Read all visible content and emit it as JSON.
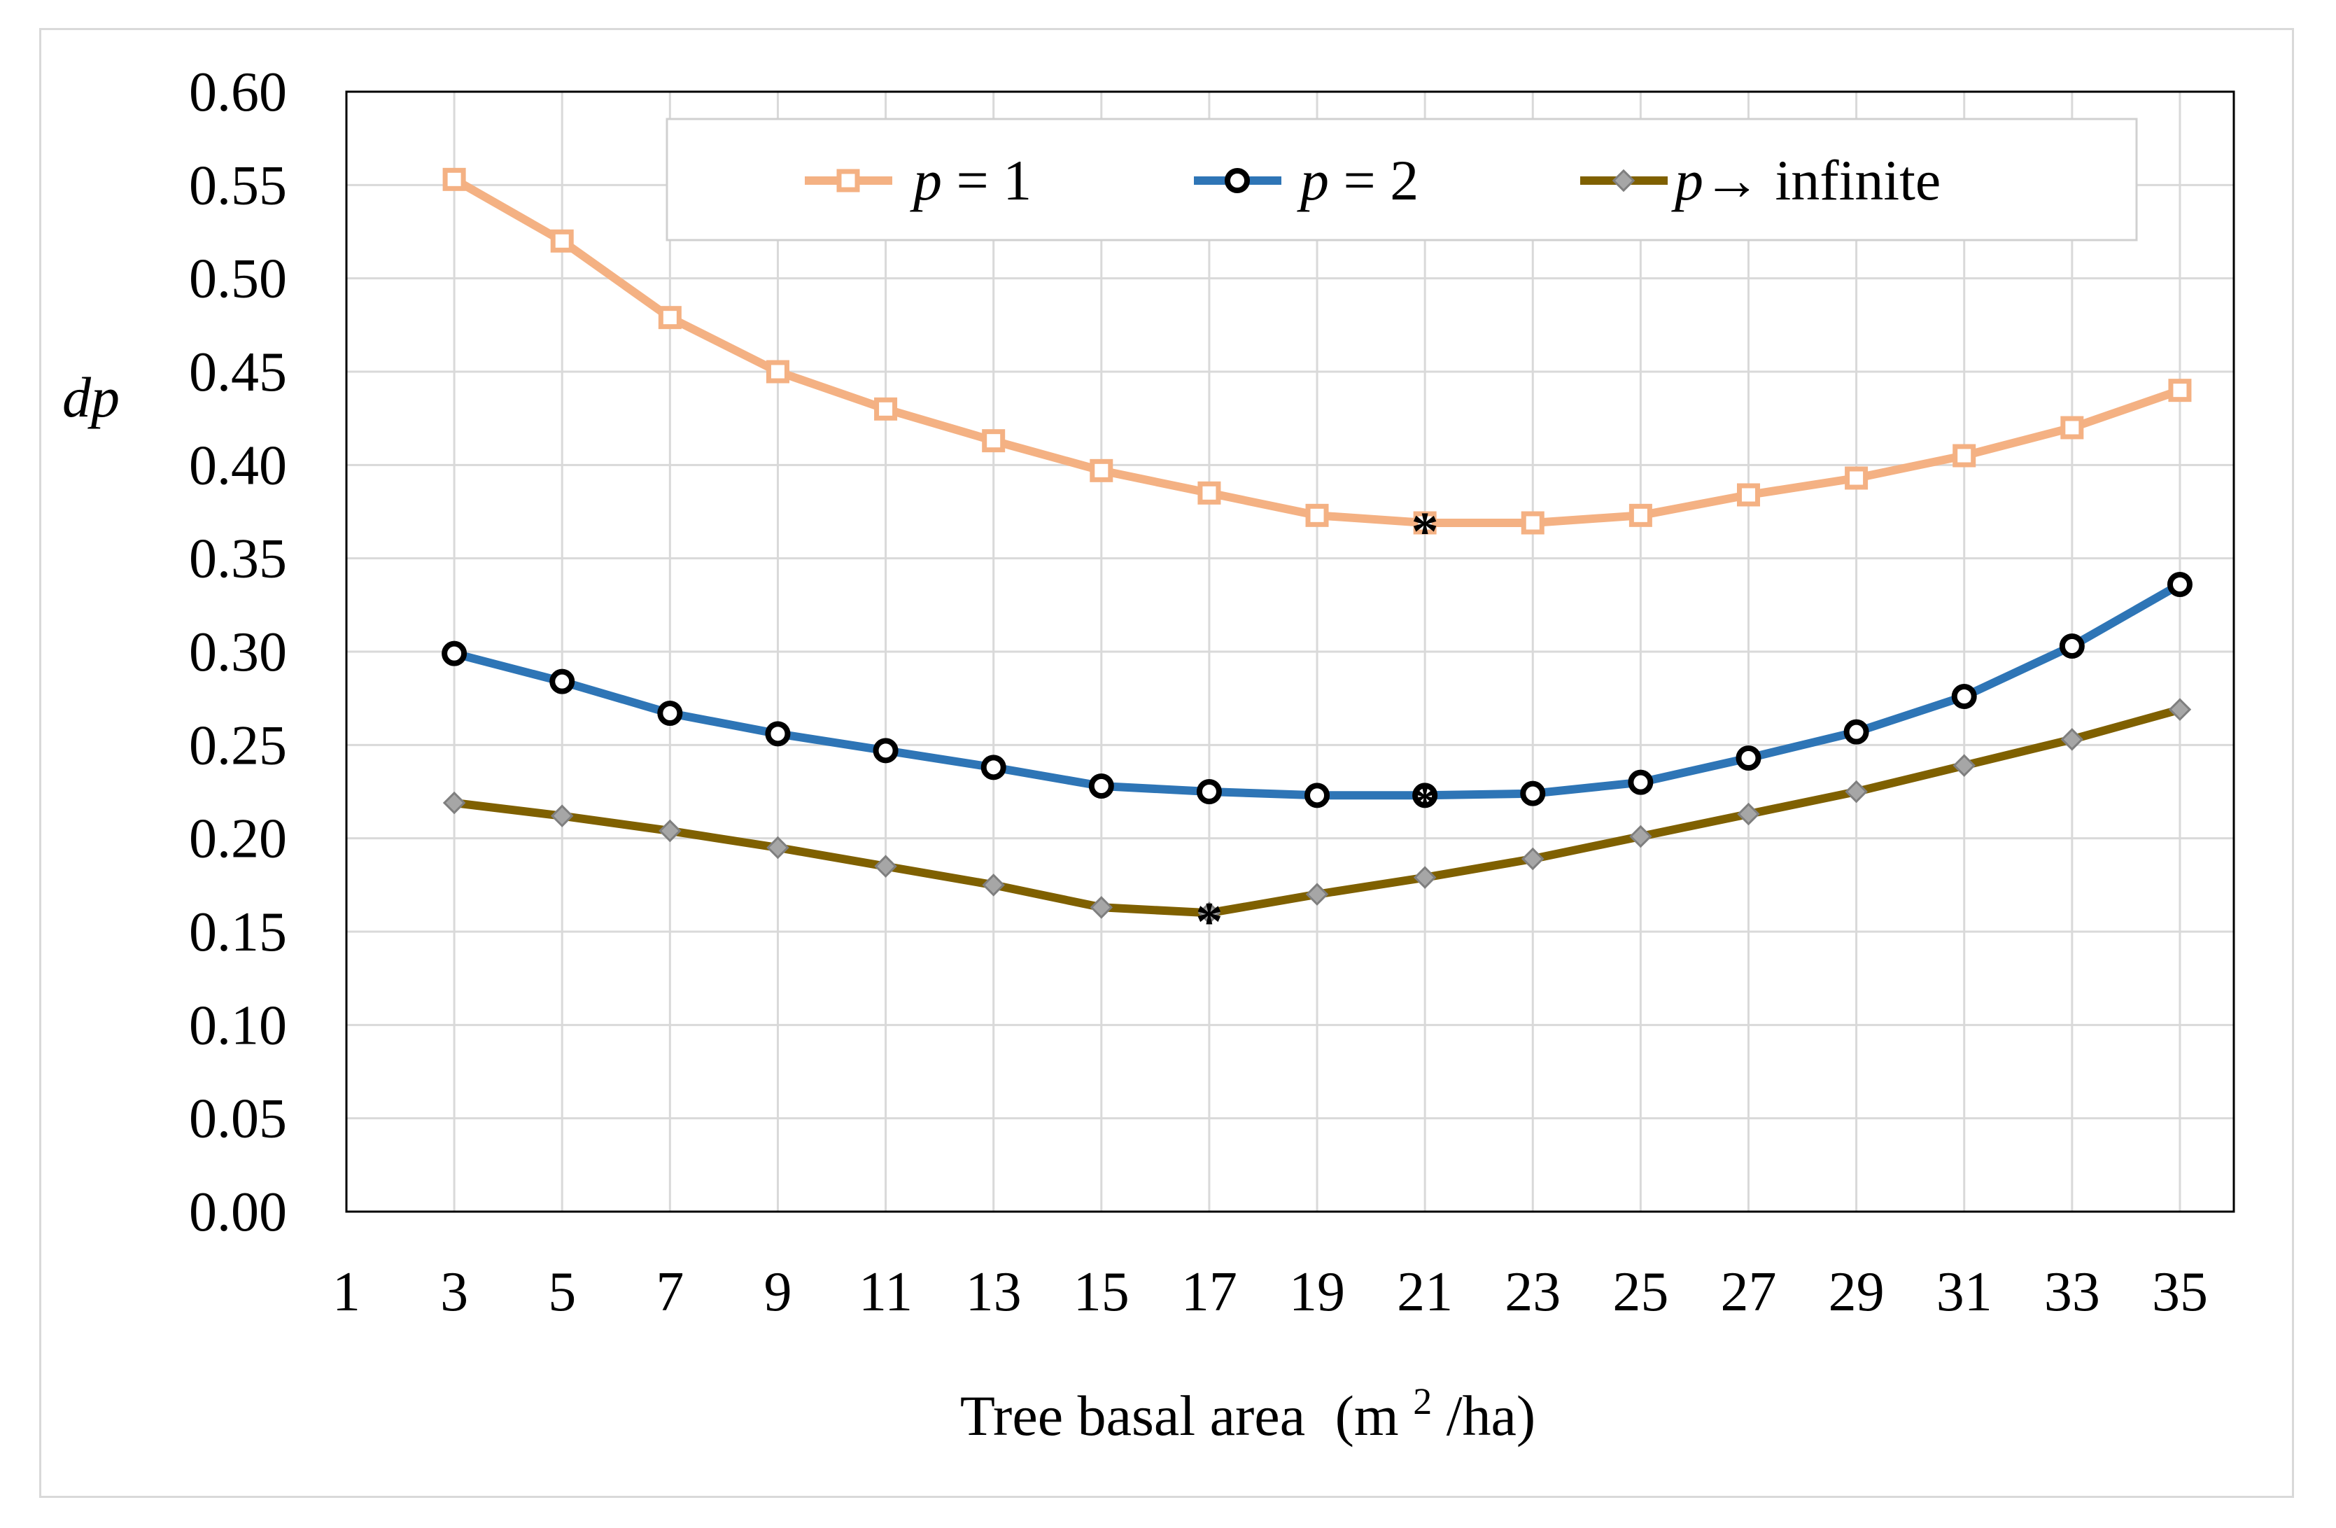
{
  "chart_data": {
    "type": "line",
    "title": "",
    "xlabel": "Tree basal area",
    "xlabel_unit_prefix": "(m",
    "xlabel_unit_sup": "2",
    "xlabel_unit_suffix": "/ha)",
    "ylabel": "dp",
    "x_categories": [
      "1",
      "3",
      "5",
      "7",
      "9",
      "11",
      "13",
      "15",
      "17",
      "19",
      "21",
      "23",
      "25",
      "27",
      "29",
      "31",
      "33",
      "35"
    ],
    "x": [
      3,
      5,
      7,
      9,
      11,
      13,
      15,
      17,
      19,
      21,
      23,
      25,
      27,
      29,
      31,
      33,
      35
    ],
    "ylim": [
      0,
      0.6
    ],
    "yticks": [
      "0.00",
      "0.05",
      "0.10",
      "0.15",
      "0.20",
      "0.25",
      "0.30",
      "0.35",
      "0.40",
      "0.45",
      "0.50",
      "0.55",
      "0.60"
    ],
    "grid": true,
    "legend_position": "top",
    "series": [
      {
        "name_var": "p",
        "name_rest": " = 1",
        "color": "#f4b183",
        "marker": "square",
        "values": [
          0.553,
          0.52,
          0.479,
          0.45,
          0.43,
          0.413,
          0.397,
          0.385,
          0.373,
          0.369,
          0.369,
          0.373,
          0.384,
          0.393,
          0.405,
          0.42,
          0.44
        ]
      },
      {
        "name_var": "p",
        "name_rest": " = 2",
        "color": "#2e75b6",
        "marker": "circle",
        "values": [
          0.299,
          0.284,
          0.267,
          0.256,
          0.247,
          0.238,
          0.228,
          0.225,
          0.223,
          0.223,
          0.224,
          0.23,
          0.243,
          0.257,
          0.276,
          0.303,
          0.336
        ]
      },
      {
        "name_var": "p",
        "name_rest": "→ infinite",
        "color": "#7f6000",
        "marker": "diamond",
        "values": [
          0.219,
          0.212,
          0.204,
          0.195,
          0.185,
          0.175,
          0.163,
          0.16,
          0.17,
          0.179,
          0.189,
          0.201,
          0.213,
          0.225,
          0.239,
          0.253,
          0.269
        ]
      }
    ],
    "annotations": [
      {
        "text": "*",
        "x": 21,
        "y": 0.369,
        "series": 0
      },
      {
        "text": "*",
        "x": 21,
        "y": 0.223,
        "series": 1
      },
      {
        "text": "*",
        "x": 17,
        "y": 0.16,
        "series": 2
      }
    ]
  }
}
